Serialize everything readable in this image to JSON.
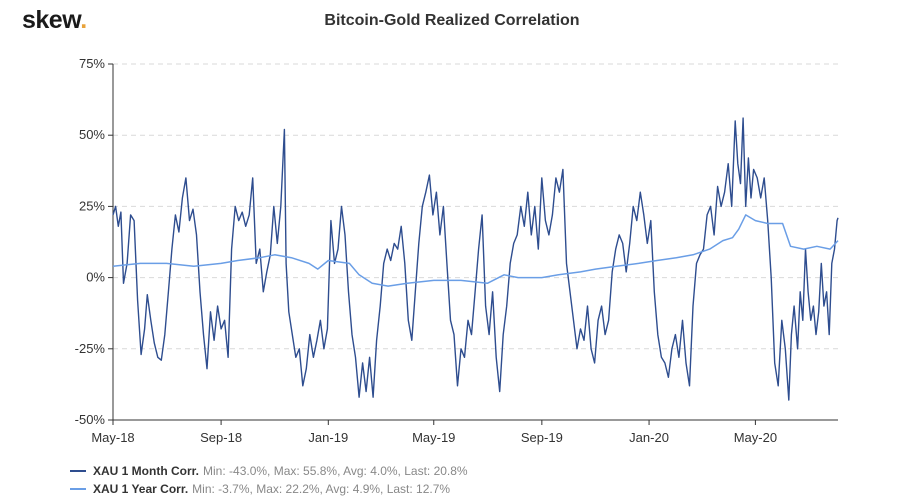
{
  "brand": {
    "name": "skew",
    "dot": "."
  },
  "chart_data": {
    "type": "line",
    "title": "Bitcoin-Gold Realized Correlation",
    "ylim": [
      -50,
      75
    ],
    "yticks": [
      75,
      50,
      25,
      0,
      -25,
      -50
    ],
    "ytick_labels": [
      "75%",
      "50%",
      "25%",
      "0%",
      "-25%",
      "-50%"
    ],
    "xlim": [
      "2018-05-01",
      "2020-07-10"
    ],
    "xticks": [
      "2018-05-01",
      "2018-09-01",
      "2019-01-01",
      "2019-05-01",
      "2019-09-01",
      "2020-01-01",
      "2020-05-01"
    ],
    "xtick_labels": [
      "May-18",
      "Sep-18",
      "Jan-19",
      "May-19",
      "Sep-19",
      "Jan-20",
      "May-20"
    ],
    "grid": "horizontal dashed",
    "legend_position": "bottom-left",
    "series": [
      {
        "name": "XAU 1 Month Corr.",
        "stats": "Min: -43.0%, Max: 55.8%, Avg: 4.0%, Last: 20.8%",
        "color": "#2e4d8f",
        "points": [
          [
            "2018-05-01",
            22
          ],
          [
            "2018-05-04",
            25
          ],
          [
            "2018-05-07",
            18
          ],
          [
            "2018-05-10",
            23
          ],
          [
            "2018-05-13",
            -2
          ],
          [
            "2018-05-17",
            5
          ],
          [
            "2018-05-21",
            22
          ],
          [
            "2018-05-25",
            20
          ],
          [
            "2018-05-29",
            -8
          ],
          [
            "2018-06-02",
            -27
          ],
          [
            "2018-06-06",
            -18
          ],
          [
            "2018-06-09",
            -6
          ],
          [
            "2018-06-13",
            -15
          ],
          [
            "2018-06-17",
            -23
          ],
          [
            "2018-06-21",
            -28
          ],
          [
            "2018-06-25",
            -29
          ],
          [
            "2018-06-29",
            -20
          ],
          [
            "2018-07-03",
            -5
          ],
          [
            "2018-07-07",
            10
          ],
          [
            "2018-07-11",
            22
          ],
          [
            "2018-07-15",
            16
          ],
          [
            "2018-07-19",
            28
          ],
          [
            "2018-07-23",
            35
          ],
          [
            "2018-07-27",
            20
          ],
          [
            "2018-07-31",
            24
          ],
          [
            "2018-08-04",
            15
          ],
          [
            "2018-08-08",
            -5
          ],
          [
            "2018-08-12",
            -20
          ],
          [
            "2018-08-16",
            -32
          ],
          [
            "2018-08-20",
            -12
          ],
          [
            "2018-08-24",
            -22
          ],
          [
            "2018-08-28",
            -10
          ],
          [
            "2018-09-01",
            -18
          ],
          [
            "2018-09-05",
            -15
          ],
          [
            "2018-09-09",
            -28
          ],
          [
            "2018-09-13",
            10
          ],
          [
            "2018-09-17",
            25
          ],
          [
            "2018-09-21",
            20
          ],
          [
            "2018-09-25",
            23
          ],
          [
            "2018-09-29",
            18
          ],
          [
            "2018-10-03",
            22
          ],
          [
            "2018-10-07",
            35
          ],
          [
            "2018-10-11",
            5
          ],
          [
            "2018-10-15",
            10
          ],
          [
            "2018-10-19",
            -5
          ],
          [
            "2018-10-23",
            2
          ],
          [
            "2018-10-27",
            8
          ],
          [
            "2018-10-31",
            25
          ],
          [
            "2018-11-04",
            12
          ],
          [
            "2018-11-08",
            25
          ],
          [
            "2018-11-12",
            52
          ],
          [
            "2018-11-14",
            5
          ],
          [
            "2018-11-17",
            -12
          ],
          [
            "2018-11-21",
            -20
          ],
          [
            "2018-11-25",
            -28
          ],
          [
            "2018-11-29",
            -25
          ],
          [
            "2018-12-03",
            -38
          ],
          [
            "2018-12-07",
            -32
          ],
          [
            "2018-12-11",
            -20
          ],
          [
            "2018-12-15",
            -28
          ],
          [
            "2018-12-19",
            -22
          ],
          [
            "2018-12-23",
            -15
          ],
          [
            "2018-12-27",
            -25
          ],
          [
            "2018-12-31",
            -18
          ],
          [
            "2019-01-04",
            20
          ],
          [
            "2019-01-08",
            5
          ],
          [
            "2019-01-12",
            10
          ],
          [
            "2019-01-16",
            25
          ],
          [
            "2019-01-20",
            15
          ],
          [
            "2019-01-24",
            -5
          ],
          [
            "2019-01-28",
            -20
          ],
          [
            "2019-02-01",
            -28
          ],
          [
            "2019-02-05",
            -42
          ],
          [
            "2019-02-09",
            -30
          ],
          [
            "2019-02-13",
            -40
          ],
          [
            "2019-02-17",
            -28
          ],
          [
            "2019-02-21",
            -42
          ],
          [
            "2019-02-25",
            -22
          ],
          [
            "2019-03-01",
            -10
          ],
          [
            "2019-03-05",
            5
          ],
          [
            "2019-03-09",
            10
          ],
          [
            "2019-03-13",
            6
          ],
          [
            "2019-03-17",
            12
          ],
          [
            "2019-03-21",
            10
          ],
          [
            "2019-03-25",
            18
          ],
          [
            "2019-03-29",
            5
          ],
          [
            "2019-04-02",
            -15
          ],
          [
            "2019-04-06",
            -22
          ],
          [
            "2019-04-10",
            -5
          ],
          [
            "2019-04-14",
            12
          ],
          [
            "2019-04-18",
            25
          ],
          [
            "2019-04-22",
            30
          ],
          [
            "2019-04-26",
            36
          ],
          [
            "2019-04-30",
            22
          ],
          [
            "2019-05-04",
            30
          ],
          [
            "2019-05-08",
            15
          ],
          [
            "2019-05-12",
            25
          ],
          [
            "2019-05-16",
            5
          ],
          [
            "2019-05-20",
            -15
          ],
          [
            "2019-05-24",
            -20
          ],
          [
            "2019-05-28",
            -38
          ],
          [
            "2019-06-01",
            -25
          ],
          [
            "2019-06-05",
            -28
          ],
          [
            "2019-06-09",
            -15
          ],
          [
            "2019-06-13",
            -20
          ],
          [
            "2019-06-17",
            -5
          ],
          [
            "2019-06-21",
            10
          ],
          [
            "2019-06-25",
            22
          ],
          [
            "2019-06-29",
            -10
          ],
          [
            "2019-07-03",
            -20
          ],
          [
            "2019-07-07",
            -5
          ],
          [
            "2019-07-11",
            -28
          ],
          [
            "2019-07-15",
            -40
          ],
          [
            "2019-07-19",
            -20
          ],
          [
            "2019-07-23",
            -10
          ],
          [
            "2019-07-27",
            5
          ],
          [
            "2019-07-31",
            12
          ],
          [
            "2019-08-04",
            15
          ],
          [
            "2019-08-08",
            25
          ],
          [
            "2019-08-12",
            18
          ],
          [
            "2019-08-16",
            30
          ],
          [
            "2019-08-20",
            15
          ],
          [
            "2019-08-24",
            25
          ],
          [
            "2019-08-28",
            10
          ],
          [
            "2019-09-01",
            35
          ],
          [
            "2019-09-05",
            20
          ],
          [
            "2019-09-09",
            15
          ],
          [
            "2019-09-13",
            22
          ],
          [
            "2019-09-17",
            35
          ],
          [
            "2019-09-21",
            30
          ],
          [
            "2019-09-25",
            38
          ],
          [
            "2019-09-29",
            5
          ],
          [
            "2019-10-03",
            -5
          ],
          [
            "2019-10-07",
            -15
          ],
          [
            "2019-10-11",
            -25
          ],
          [
            "2019-10-15",
            -18
          ],
          [
            "2019-10-19",
            -22
          ],
          [
            "2019-10-23",
            -10
          ],
          [
            "2019-10-27",
            -25
          ],
          [
            "2019-10-31",
            -30
          ],
          [
            "2019-11-04",
            -15
          ],
          [
            "2019-11-08",
            -10
          ],
          [
            "2019-11-12",
            -20
          ],
          [
            "2019-11-16",
            -15
          ],
          [
            "2019-11-20",
            2
          ],
          [
            "2019-11-24",
            10
          ],
          [
            "2019-11-28",
            15
          ],
          [
            "2019-12-02",
            12
          ],
          [
            "2019-12-06",
            2
          ],
          [
            "2019-12-10",
            12
          ],
          [
            "2019-12-14",
            25
          ],
          [
            "2019-12-18",
            20
          ],
          [
            "2019-12-22",
            30
          ],
          [
            "2019-12-26",
            22
          ],
          [
            "2019-12-30",
            12
          ],
          [
            "2020-01-03",
            20
          ],
          [
            "2020-01-07",
            -5
          ],
          [
            "2020-01-11",
            -20
          ],
          [
            "2020-01-15",
            -28
          ],
          [
            "2020-01-19",
            -30
          ],
          [
            "2020-01-23",
            -35
          ],
          [
            "2020-01-27",
            -25
          ],
          [
            "2020-01-31",
            -20
          ],
          [
            "2020-02-04",
            -28
          ],
          [
            "2020-02-08",
            -15
          ],
          [
            "2020-02-12",
            -30
          ],
          [
            "2020-02-16",
            -38
          ],
          [
            "2020-02-20",
            -10
          ],
          [
            "2020-02-24",
            5
          ],
          [
            "2020-02-28",
            8
          ],
          [
            "2020-03-03",
            10
          ],
          [
            "2020-03-07",
            22
          ],
          [
            "2020-03-11",
            25
          ],
          [
            "2020-03-15",
            15
          ],
          [
            "2020-03-19",
            32
          ],
          [
            "2020-03-23",
            25
          ],
          [
            "2020-03-27",
            30
          ],
          [
            "2020-03-31",
            40
          ],
          [
            "2020-04-04",
            25
          ],
          [
            "2020-04-08",
            55
          ],
          [
            "2020-04-11",
            40
          ],
          [
            "2020-04-14",
            33
          ],
          [
            "2020-04-17",
            56
          ],
          [
            "2020-04-20",
            25
          ],
          [
            "2020-04-23",
            42
          ],
          [
            "2020-04-26",
            28
          ],
          [
            "2020-04-29",
            38
          ],
          [
            "2020-05-03",
            35
          ],
          [
            "2020-05-07",
            28
          ],
          [
            "2020-05-11",
            35
          ],
          [
            "2020-05-15",
            20
          ],
          [
            "2020-05-19",
            0
          ],
          [
            "2020-05-23",
            -30
          ],
          [
            "2020-05-27",
            -38
          ],
          [
            "2020-05-31",
            -15
          ],
          [
            "2020-06-04",
            -25
          ],
          [
            "2020-06-08",
            -43
          ],
          [
            "2020-06-11",
            -20
          ],
          [
            "2020-06-14",
            -10
          ],
          [
            "2020-06-18",
            -25
          ],
          [
            "2020-06-21",
            -5
          ],
          [
            "2020-06-24",
            -15
          ],
          [
            "2020-06-27",
            10
          ],
          [
            "2020-06-30",
            -5
          ],
          [
            "2020-07-03",
            -15
          ],
          [
            "2020-07-06",
            -10
          ],
          [
            "2020-07-09",
            -20
          ],
          [
            "2020-07-12",
            -12
          ],
          [
            "2020-07-15",
            5
          ],
          [
            "2020-07-18",
            -10
          ],
          [
            "2020-07-21",
            -5
          ],
          [
            "2020-07-24",
            -20
          ],
          [
            "2020-07-27",
            5
          ],
          [
            "2020-07-30",
            10
          ],
          [
            "2020-08-02",
            20
          ],
          [
            "2020-08-03",
            21
          ]
        ]
      },
      {
        "name": "XAU 1 Year Corr.",
        "stats": "Min: -3.7%, Max: 22.2%, Avg: 4.9%, Last: 12.7%",
        "color": "#6a9ee6",
        "points": [
          [
            "2018-05-01",
            4
          ],
          [
            "2018-06-01",
            5
          ],
          [
            "2018-07-01",
            5
          ],
          [
            "2018-08-01",
            4
          ],
          [
            "2018-09-01",
            5
          ],
          [
            "2018-09-20",
            6
          ],
          [
            "2018-10-15",
            7
          ],
          [
            "2018-11-01",
            8
          ],
          [
            "2018-11-20",
            7
          ],
          [
            "2018-12-10",
            5
          ],
          [
            "2018-12-20",
            3
          ],
          [
            "2019-01-01",
            6
          ],
          [
            "2019-01-25",
            5
          ],
          [
            "2019-02-05",
            1
          ],
          [
            "2019-02-20",
            -2
          ],
          [
            "2019-03-10",
            -3
          ],
          [
            "2019-04-01",
            -2
          ],
          [
            "2019-05-01",
            -1
          ],
          [
            "2019-06-01",
            -1
          ],
          [
            "2019-07-01",
            -2
          ],
          [
            "2019-07-20",
            1
          ],
          [
            "2019-08-05",
            0
          ],
          [
            "2019-09-01",
            0
          ],
          [
            "2019-09-20",
            1
          ],
          [
            "2019-10-15",
            2
          ],
          [
            "2019-11-01",
            3
          ],
          [
            "2019-11-25",
            4
          ],
          [
            "2019-12-20",
            5
          ],
          [
            "2020-01-10",
            6
          ],
          [
            "2020-02-01",
            7
          ],
          [
            "2020-02-20",
            8
          ],
          [
            "2020-03-10",
            10
          ],
          [
            "2020-03-25",
            13
          ],
          [
            "2020-04-05",
            14
          ],
          [
            "2020-04-12",
            17
          ],
          [
            "2020-04-20",
            22
          ],
          [
            "2020-05-01",
            20
          ],
          [
            "2020-05-15",
            19
          ],
          [
            "2020-06-01",
            19
          ],
          [
            "2020-06-10",
            11
          ],
          [
            "2020-06-25",
            10
          ],
          [
            "2020-07-10",
            11
          ],
          [
            "2020-07-25",
            10
          ],
          [
            "2020-08-03",
            13
          ]
        ]
      }
    ]
  }
}
